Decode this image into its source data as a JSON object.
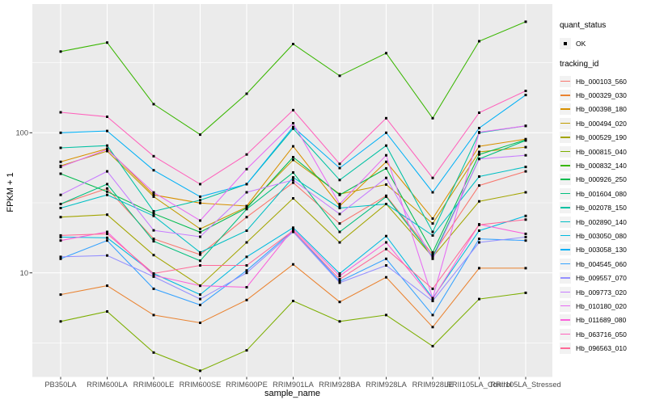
{
  "chart_data": {
    "type": "line",
    "title": "",
    "xlabel": "sample_name",
    "ylabel": "FPKM + 1",
    "y_scale": "log10",
    "ylim": [
      1.9,
      760
    ],
    "y_ticks": [
      100,
      10
    ],
    "y_minor_ticks": [
      316.23,
      31.62,
      3.16
    ],
    "grid": true,
    "panel_bg": "#EBEBEB",
    "grid_color": "#FFFFFF",
    "tick_label_color": "#4D4D4D",
    "point_shape": "square",
    "point_color": "#000000",
    "legend_position": "right",
    "categories": [
      "PB350LA",
      "RRIM600LA",
      "RRIM600LE",
      "RRIM600SE",
      "RRIM600PE",
      "RRIM901LA",
      "RRIM928BA",
      "RRIM928LA",
      "RRIM928LE",
      "RRII105LA_Control",
      "RRII105LA_Stressed"
    ],
    "legend": {
      "quant_status_title": "quant_status",
      "quant_status_items": [
        {
          "label": "OK",
          "marker": "square",
          "color": "#000000"
        }
      ],
      "tracking_id_title": "tracking_id"
    },
    "series": [
      {
        "name": "Hb_000103_560",
        "color": "#F8766D",
        "values": [
          31,
          40,
          17.5,
          13.5,
          25,
          44,
          22.5,
          35.5,
          13.5,
          42,
          53
        ]
      },
      {
        "name": "Hb_000329_030",
        "color": "#EA8331",
        "values": [
          7,
          8.1,
          5.0,
          4.4,
          6.4,
          11.5,
          6.2,
          9.3,
          4.1,
          10.8,
          10.8
        ]
      },
      {
        "name": "Hb_000398_180",
        "color": "#D89000",
        "values": [
          62,
          77,
          36,
          31.5,
          30,
          80,
          30,
          62,
          24.4,
          80,
          90
        ]
      },
      {
        "name": "Hb_000494_020",
        "color": "#C09B00",
        "values": [
          58,
          74,
          35,
          20.6,
          29.5,
          64,
          36.5,
          42.7,
          22.5,
          73,
          79
        ]
      },
      {
        "name": "Hb_000529_190",
        "color": "#A3A500",
        "values": [
          25,
          26,
          13.4,
          8.1,
          16.5,
          34,
          16.5,
          31,
          13,
          32.4,
          37.6
        ]
      },
      {
        "name": "Hb_000815_040",
        "color": "#7CAE00",
        "values": [
          4.5,
          5.3,
          2.7,
          2.0,
          2.8,
          6.3,
          4.5,
          5.0,
          3.0,
          6.5,
          7.2
        ]
      },
      {
        "name": "Hb_000832_140",
        "color": "#39B600",
        "values": [
          380,
          440,
          160,
          97,
          190,
          430,
          255,
          370,
          127,
          450,
          620
        ]
      },
      {
        "name": "Hb_000926_250",
        "color": "#00BB4E",
        "values": [
          51,
          38,
          26.5,
          19.5,
          29,
          67,
          36,
          55.7,
          14,
          70,
          89
        ]
      },
      {
        "name": "Hb_001604_080",
        "color": "#00BF7D",
        "values": [
          31,
          43,
          16.8,
          12.2,
          28.5,
          52,
          19.6,
          35,
          13,
          65,
          88
        ]
      },
      {
        "name": "Hb_002078_150",
        "color": "#00C1A3",
        "values": [
          78,
          81,
          27.5,
          33,
          43,
          107,
          46,
          81,
          19.6,
          100,
          112
        ]
      },
      {
        "name": "Hb_002890_140",
        "color": "#00BFC4",
        "values": [
          29,
          36,
          25.5,
          14,
          20,
          48,
          29,
          31,
          18.5,
          48.7,
          57
        ]
      },
      {
        "name": "Hb_003050_080",
        "color": "#00BAE0",
        "values": [
          18,
          17.8,
          9.9,
          7.0,
          13,
          21,
          9.9,
          18.3,
          6.6,
          20,
          25.5
        ]
      },
      {
        "name": "Hb_003058_130",
        "color": "#00B0F6",
        "values": [
          100,
          103,
          54,
          35,
          43,
          110,
          56,
          100,
          37.6,
          108,
          186
        ]
      },
      {
        "name": "Hb_004545_060",
        "color": "#35A2FF",
        "values": [
          12.6,
          17,
          7.7,
          5.9,
          10.4,
          20,
          8.7,
          12.6,
          5.0,
          17.5,
          17
        ]
      },
      {
        "name": "Hb_009557_070",
        "color": "#9590FF",
        "values": [
          13,
          13.3,
          9.4,
          6.5,
          10,
          19.6,
          8.5,
          11.3,
          6.3,
          16.5,
          18
        ]
      },
      {
        "name": "Hb_009773_020",
        "color": "#C77CFF",
        "values": [
          36,
          53,
          20.1,
          18.1,
          37.6,
          46,
          26.3,
          47.6,
          12.6,
          65,
          69
        ]
      },
      {
        "name": "Hb_010180_020",
        "color": "#E76BF3",
        "values": [
          57,
          76,
          37.5,
          23.6,
          55,
          117,
          31,
          69,
          6.6,
          101,
          112
        ]
      },
      {
        "name": "Hb_011689_080",
        "color": "#FA62DB",
        "values": [
          17,
          19.6,
          9.6,
          8.1,
          7.9,
          20.5,
          9.5,
          16.5,
          6.5,
          22.2,
          19
        ]
      },
      {
        "name": "Hb_063716_050",
        "color": "#FF62BC",
        "values": [
          140,
          130,
          68,
          43,
          70,
          145,
          60,
          127,
          47.6,
          139,
          199
        ]
      },
      {
        "name": "Hb_096563_010",
        "color": "#FF6A98",
        "values": [
          18.5,
          19,
          9.9,
          11.3,
          11.3,
          20,
          9.0,
          14.8,
          7.7,
          22,
          24
        ]
      }
    ]
  }
}
